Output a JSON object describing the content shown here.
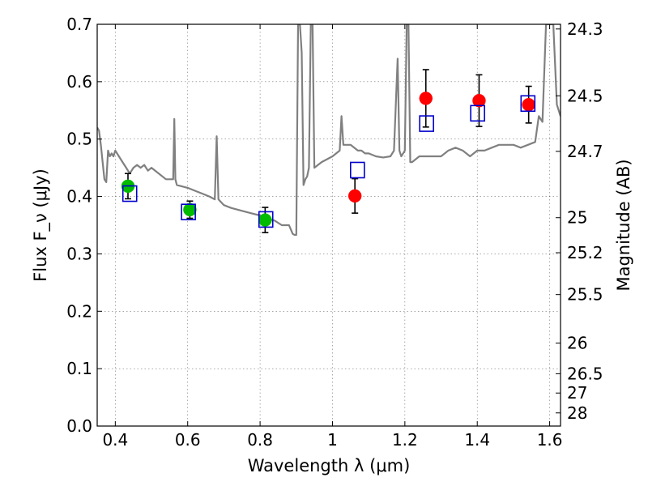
{
  "chart_data": {
    "type": "scatter",
    "xlabel": "Wavelength λ (μm)",
    "ylabel": "Flux F_ν (μJy)",
    "ylabel_right": "Magnitude (AB)",
    "xlim": [
      0.35,
      1.63
    ],
    "ylim": [
      0.0,
      0.7
    ],
    "x_ticks": [
      "0.4",
      "0.6",
      "0.8",
      "1",
      "1.2",
      "1.4",
      "1.6"
    ],
    "x_tick_values": [
      0.4,
      0.6,
      0.8,
      1.0,
      1.2,
      1.4,
      1.6
    ],
    "y_ticks": [
      "0.0",
      "0.1",
      "0.2",
      "0.3",
      "0.4",
      "0.5",
      "0.6",
      "0.7"
    ],
    "y_tick_values": [
      0.0,
      0.1,
      0.2,
      0.3,
      0.4,
      0.5,
      0.6,
      0.7
    ],
    "right_ticks": [
      "24.3",
      "24.5",
      "24.7",
      "25",
      "25.2",
      "25.5",
      "26",
      "26.5",
      "27",
      "28"
    ],
    "right_tick_values": [
      24.3,
      24.5,
      24.7,
      25.0,
      25.2,
      25.5,
      26.0,
      26.5,
      27.0,
      28.0
    ],
    "grid": true,
    "colors": {
      "spectrum": "#808080",
      "green_points": "#00bb00",
      "red_points": "#ff0000",
      "model_boxes": "#0000cc",
      "errorbars": "#000000"
    },
    "series": [
      {
        "style": "line",
        "x": [
          0.35,
          0.355,
          0.36,
          0.365,
          0.37,
          0.375,
          0.38,
          0.385,
          0.39,
          0.395,
          0.4,
          0.41,
          0.42,
          0.43,
          0.44,
          0.45,
          0.46,
          0.47,
          0.48,
          0.49,
          0.5,
          0.52,
          0.54,
          0.56,
          0.563,
          0.566,
          0.57,
          0.6,
          0.62,
          0.64,
          0.66,
          0.675,
          0.68,
          0.685,
          0.7,
          0.72,
          0.75,
          0.78,
          0.8,
          0.82,
          0.84,
          0.86,
          0.88,
          0.89,
          0.895,
          0.9,
          0.905,
          0.91,
          0.915,
          0.92,
          0.925,
          0.93,
          0.935,
          0.94,
          0.945,
          0.95,
          0.97,
          1.0,
          1.02,
          1.025,
          1.03,
          1.05,
          1.07,
          1.08,
          1.09,
          1.1,
          1.12,
          1.14,
          1.16,
          1.17,
          1.18,
          1.185,
          1.19,
          1.2,
          1.205,
          1.21,
          1.215,
          1.22,
          1.24,
          1.26,
          1.28,
          1.3,
          1.32,
          1.34,
          1.36,
          1.38,
          1.4,
          1.42,
          1.44,
          1.46,
          1.48,
          1.5,
          1.52,
          1.54,
          1.56,
          1.57,
          1.58,
          1.59,
          1.6,
          1.61,
          1.62,
          1.63
        ],
        "y": [
          0.52,
          0.515,
          0.49,
          0.46,
          0.43,
          0.425,
          0.48,
          0.47,
          0.475,
          0.47,
          0.48,
          0.47,
          0.46,
          0.45,
          0.44,
          0.45,
          0.455,
          0.45,
          0.455,
          0.445,
          0.45,
          0.44,
          0.43,
          0.43,
          0.535,
          0.43,
          0.42,
          0.415,
          0.41,
          0.405,
          0.4,
          0.395,
          0.505,
          0.395,
          0.385,
          0.38,
          0.375,
          0.37,
          0.367,
          0.362,
          0.358,
          0.35,
          0.35,
          0.335,
          0.333,
          0.333,
          0.7,
          0.7,
          0.65,
          0.42,
          0.43,
          0.435,
          0.45,
          0.7,
          0.7,
          0.45,
          0.46,
          0.47,
          0.48,
          0.54,
          0.49,
          0.49,
          0.48,
          0.48,
          0.475,
          0.475,
          0.47,
          0.468,
          0.47,
          0.48,
          0.64,
          0.48,
          0.47,
          0.48,
          0.7,
          0.7,
          0.46,
          0.46,
          0.47,
          0.47,
          0.47,
          0.47,
          0.48,
          0.485,
          0.48,
          0.47,
          0.48,
          0.48,
          0.485,
          0.49,
          0.49,
          0.49,
          0.485,
          0.49,
          0.495,
          0.54,
          0.53,
          0.7,
          0.7,
          0.7,
          0.56,
          0.54
        ]
      },
      {
        "style": "points-green",
        "x": [
          0.435,
          0.606,
          0.814
        ],
        "y": [
          0.418,
          0.377,
          0.359
        ],
        "err": [
          0.022,
          0.015,
          0.022
        ]
      },
      {
        "style": "points-red",
        "x": [
          1.062,
          1.258,
          1.405,
          1.542
        ],
        "y": [
          0.401,
          0.571,
          0.567,
          0.56
        ],
        "err": [
          0.03,
          0.05,
          0.045,
          0.032
        ]
      },
      {
        "style": "boxes-blue",
        "x": [
          0.44,
          0.602,
          0.816,
          1.069,
          1.26,
          1.401,
          1.54
        ],
        "y": [
          0.405,
          0.373,
          0.36,
          0.446,
          0.527,
          0.545,
          0.562
        ]
      }
    ]
  }
}
